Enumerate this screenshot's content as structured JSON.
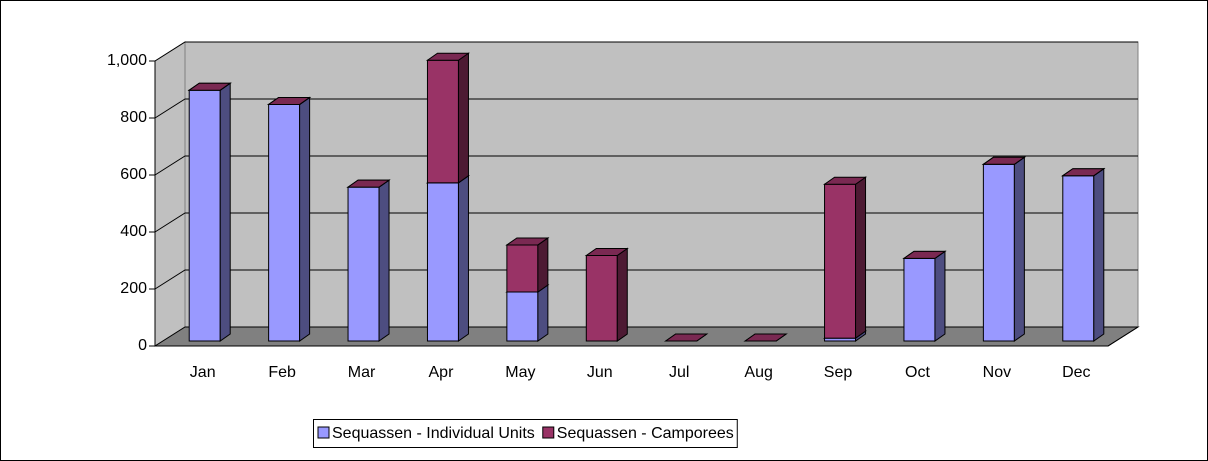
{
  "chart_data": {
    "type": "bar3d-stacked",
    "categories": [
      "Jan",
      "Feb",
      "Mar",
      "Apr",
      "May",
      "Jun",
      "Jul",
      "Aug",
      "Sep",
      "Oct",
      "Nov",
      "Dec"
    ],
    "series": [
      {
        "name": "Sequassen - Individual Units",
        "color": "#9999ff",
        "values": [
          880,
          830,
          540,
          555,
          172,
          0,
          0,
          0,
          10,
          290,
          620,
          580
        ]
      },
      {
        "name": "Sequassen - Camporees",
        "color": "#993366",
        "values": [
          0,
          0,
          0,
          430,
          165,
          300,
          0,
          0,
          540,
          0,
          0,
          0
        ]
      }
    ],
    "ylim": [
      0,
      1000
    ],
    "yticks": [
      0,
      200,
      400,
      600,
      800,
      {
        "value": 1000,
        "label": "1,000"
      }
    ],
    "grid": true,
    "legend": "bottom"
  }
}
